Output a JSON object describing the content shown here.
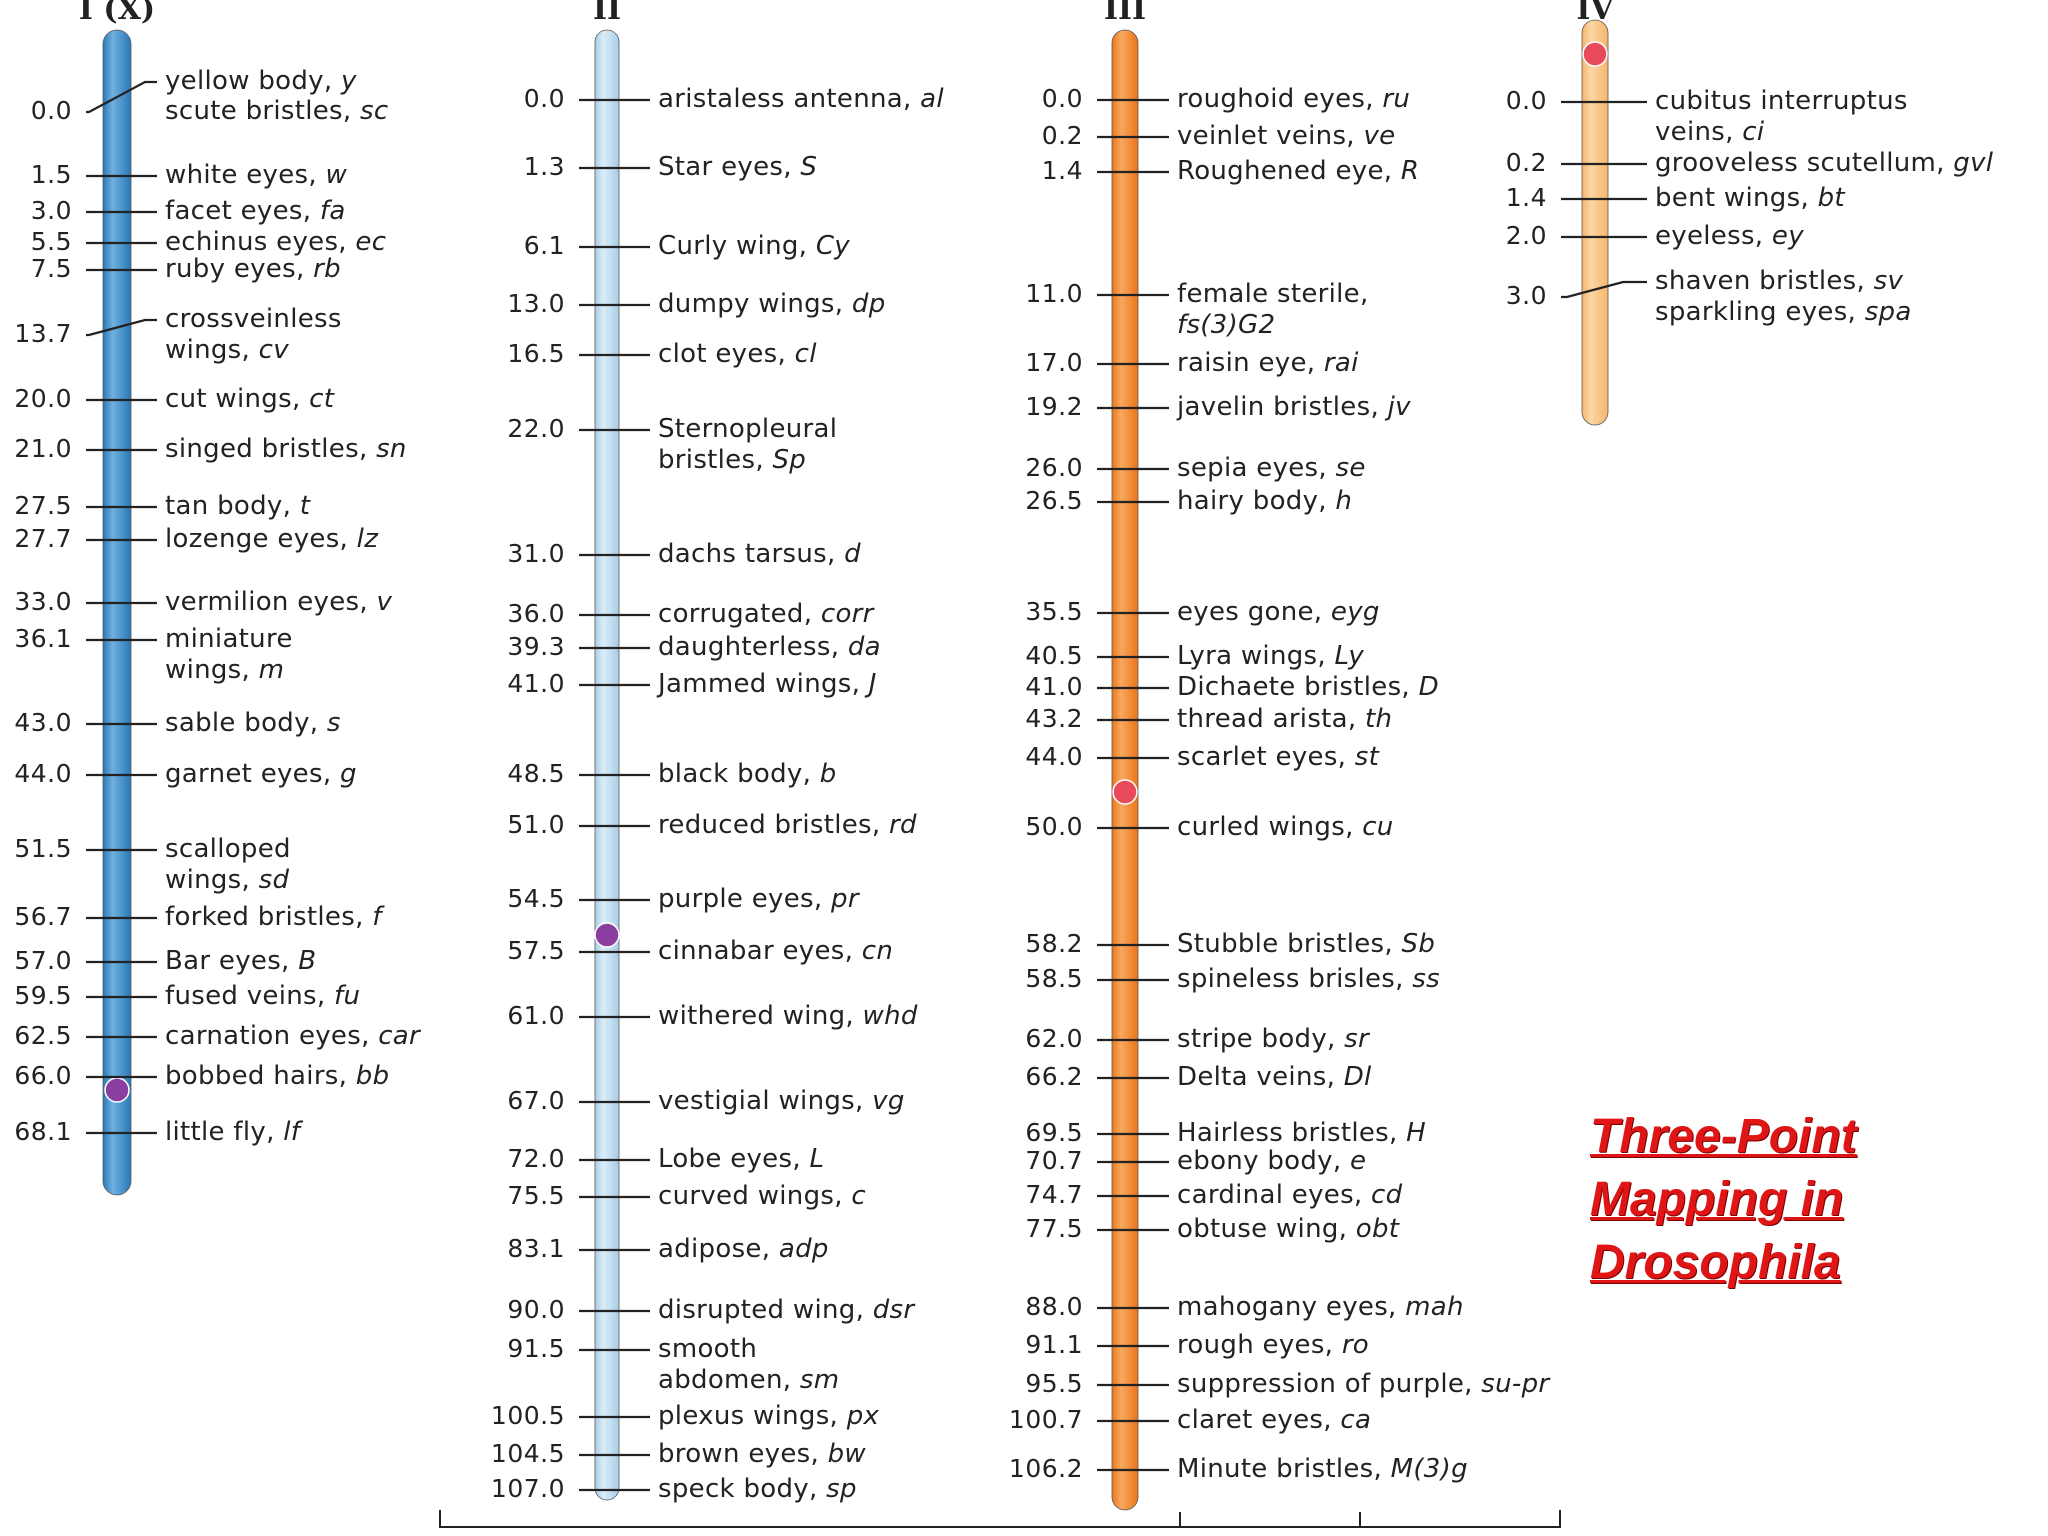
{
  "title_lines": [
    "Three-Point",
    "Mapping in",
    "Drosophila"
  ],
  "colors": {
    "chrom1": "#2a78b6",
    "chrom2": "#a8cde8",
    "chrom3": "#ec7518",
    "chrom4": "#f6b56a",
    "centromere_red": "#e84a5a",
    "centromere_purple": "#8a3fa0",
    "title": "#e01515"
  },
  "chromosomes": [
    {
      "label": "I (X)",
      "centromere_pos": 66.0,
      "centromere_color": "purple",
      "genes": [
        {
          "pos": "0.0",
          "name": "yellow body, ",
          "symbol": "y"
        },
        {
          "pos": "",
          "name": "scute bristles, ",
          "symbol": "sc"
        },
        {
          "pos": "1.5",
          "name": "white eyes, ",
          "symbol": "w"
        },
        {
          "pos": "3.0",
          "name": "facet eyes, ",
          "symbol": "fa"
        },
        {
          "pos": "5.5",
          "name": "echinus eyes, ",
          "symbol": "ec"
        },
        {
          "pos": "7.5",
          "name": "ruby eyes, ",
          "symbol": "rb"
        },
        {
          "pos": "13.7",
          "name": "crossveinless",
          "name2": "wings, ",
          "symbol": "cv"
        },
        {
          "pos": "20.0",
          "name": "cut wings, ",
          "symbol": "ct"
        },
        {
          "pos": "21.0",
          "name": "singed bristles, ",
          "symbol": "sn"
        },
        {
          "pos": "27.5",
          "name": "tan body, ",
          "symbol": "t"
        },
        {
          "pos": "27.7",
          "name": "lozenge eyes, ",
          "symbol": "lz"
        },
        {
          "pos": "33.0",
          "name": "vermilion eyes, ",
          "symbol": "v"
        },
        {
          "pos": "36.1",
          "name": "miniature",
          "name2": "wings, ",
          "symbol": "m"
        },
        {
          "pos": "43.0",
          "name": "sable body, ",
          "symbol": "s"
        },
        {
          "pos": "44.0",
          "name": "garnet eyes, ",
          "symbol": "g"
        },
        {
          "pos": "51.5",
          "name": "scalloped",
          "name2": "wings, ",
          "symbol": "sd"
        },
        {
          "pos": "56.7",
          "name": "forked bristles, ",
          "symbol": "f"
        },
        {
          "pos": "57.0",
          "name": "Bar eyes, ",
          "symbol": "B"
        },
        {
          "pos": "59.5",
          "name": "fused veins, ",
          "symbol": "fu"
        },
        {
          "pos": "62.5",
          "name": "carnation eyes, ",
          "symbol": "car"
        },
        {
          "pos": "66.0",
          "name": "bobbed hairs, ",
          "symbol": "bb"
        },
        {
          "pos": "68.1",
          "name": "little fly, ",
          "symbol": "lf"
        }
      ]
    },
    {
      "label": "II",
      "centromere_pos": 55.0,
      "centromere_color": "purple",
      "genes": [
        {
          "pos": "0.0",
          "name": "aristaless antenna, ",
          "symbol": "al"
        },
        {
          "pos": "1.3",
          "name": "Star eyes, ",
          "symbol": "S"
        },
        {
          "pos": "6.1",
          "name": "Curly wing, ",
          "symbol": "Cy"
        },
        {
          "pos": "13.0",
          "name": "dumpy wings, ",
          "symbol": "dp"
        },
        {
          "pos": "16.5",
          "name": "clot eyes, ",
          "symbol": "cl"
        },
        {
          "pos": "22.0",
          "name": "Sternopleural",
          "name2": "bristles, ",
          "symbol": "Sp"
        },
        {
          "pos": "31.0",
          "name": "dachs tarsus, ",
          "symbol": "d"
        },
        {
          "pos": "36.0",
          "name": "corrugated, ",
          "symbol": "corr"
        },
        {
          "pos": "39.3",
          "name": "daughterless, ",
          "symbol": "da"
        },
        {
          "pos": "41.0",
          "name": "Jammed wings, ",
          "symbol": "J"
        },
        {
          "pos": "48.5",
          "name": "black body, ",
          "symbol": "b"
        },
        {
          "pos": "51.0",
          "name": "reduced bristles, ",
          "symbol": "rd"
        },
        {
          "pos": "54.5",
          "name": "purple eyes, ",
          "symbol": "pr"
        },
        {
          "pos": "57.5",
          "name": "cinnabar eyes, ",
          "symbol": "cn"
        },
        {
          "pos": "61.0",
          "name": "withered wing, ",
          "symbol": "whd"
        },
        {
          "pos": "67.0",
          "name": "vestigial wings, ",
          "symbol": "vg"
        },
        {
          "pos": "72.0",
          "name": "Lobe eyes, ",
          "symbol": "L"
        },
        {
          "pos": "75.5",
          "name": "curved wings, ",
          "symbol": "c"
        },
        {
          "pos": "83.1",
          "name": "adipose, ",
          "symbol": "adp"
        },
        {
          "pos": "90.0",
          "name": "disrupted wing, ",
          "symbol": "dsr"
        },
        {
          "pos": "91.5",
          "name": "smooth",
          "name2": "abdomen, ",
          "symbol": "sm"
        },
        {
          "pos": "100.5",
          "name": "plexus wings, ",
          "symbol": "px"
        },
        {
          "pos": "104.5",
          "name": "brown eyes, ",
          "symbol": "bw"
        },
        {
          "pos": "107.0",
          "name": "speck body, ",
          "symbol": "sp"
        }
      ]
    },
    {
      "label": "III",
      "centromere_pos": 47.0,
      "centromere_color": "red",
      "genes": [
        {
          "pos": "0.0",
          "name": "roughoid eyes, ",
          "symbol": "ru"
        },
        {
          "pos": "0.2",
          "name": "veinlet veins, ",
          "symbol": "ve"
        },
        {
          "pos": "1.4",
          "name": "Roughened eye, ",
          "symbol": "R"
        },
        {
          "pos": "11.0",
          "name": "female sterile,",
          "name2": "",
          "symbol": "fs(3)G2"
        },
        {
          "pos": "17.0",
          "name": "raisin eye, ",
          "symbol": "rai"
        },
        {
          "pos": "19.2",
          "name": "javelin bristles, ",
          "symbol": "jv"
        },
        {
          "pos": "26.0",
          "name": "sepia eyes, ",
          "symbol": "se"
        },
        {
          "pos": "26.5",
          "name": "hairy body, ",
          "symbol": "h"
        },
        {
          "pos": "35.5",
          "name": "eyes gone, ",
          "symbol": "eyg"
        },
        {
          "pos": "40.5",
          "name": "Lyra wings, ",
          "symbol": "Ly"
        },
        {
          "pos": "41.0",
          "name": "Dichaete bristles, ",
          "symbol": "D"
        },
        {
          "pos": "43.2",
          "name": "thread arista, ",
          "symbol": "th"
        },
        {
          "pos": "44.0",
          "name": "scarlet eyes, ",
          "symbol": "st"
        },
        {
          "pos": "50.0",
          "name": "curled wings, ",
          "symbol": "cu"
        },
        {
          "pos": "58.2",
          "name": "Stubble bristles, ",
          "symbol": "Sb"
        },
        {
          "pos": "58.5",
          "name": "spineless brisles, ",
          "symbol": "ss"
        },
        {
          "pos": "62.0",
          "name": "stripe body, ",
          "symbol": "sr"
        },
        {
          "pos": "66.2",
          "name": "Delta veins, ",
          "symbol": "Dl"
        },
        {
          "pos": "69.5",
          "name": "Hairless bristles, ",
          "symbol": "H"
        },
        {
          "pos": "70.7",
          "name": "ebony body, ",
          "symbol": "e"
        },
        {
          "pos": "74.7",
          "name": "cardinal eyes, ",
          "symbol": "cd"
        },
        {
          "pos": "77.5",
          "name": "obtuse wing, ",
          "symbol": "obt"
        },
        {
          "pos": "88.0",
          "name": "mahogany eyes, ",
          "symbol": "mah"
        },
        {
          "pos": "91.1",
          "name": "rough eyes, ",
          "symbol": "ro"
        },
        {
          "pos": "95.5",
          "name": "suppression of purple, ",
          "symbol": "su-pr"
        },
        {
          "pos": "100.7",
          "name": "claret eyes, ",
          "symbol": "ca"
        },
        {
          "pos": "106.2",
          "name": "Minute bristles, ",
          "symbol": "M(3)g"
        }
      ]
    },
    {
      "label": "IV",
      "centromere_pos": 0.0,
      "centromere_color": "red",
      "genes": [
        {
          "pos": "0.0",
          "name": "cubitus interruptus",
          "name2": "veins, ",
          "symbol": "ci"
        },
        {
          "pos": "0.2",
          "name": "grooveless scutellum, ",
          "symbol": "gvl"
        },
        {
          "pos": "1.4",
          "name": "bent wings, ",
          "symbol": "bt"
        },
        {
          "pos": "2.0",
          "name": "eyeless, ",
          "symbol": "ey"
        },
        {
          "pos": "3.0",
          "name": "shaven bristles, ",
          "symbol": "sv"
        },
        {
          "pos": "",
          "name": "sparkling eyes, ",
          "symbol": "spa"
        }
      ]
    }
  ]
}
